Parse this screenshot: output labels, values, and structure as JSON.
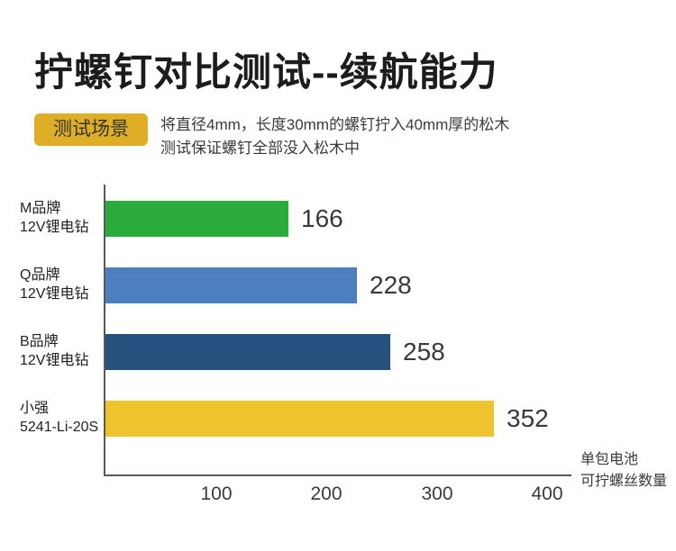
{
  "page": {
    "title": "拧螺钉对比测试--续航能力",
    "scenario_badge": "测试场景",
    "scenario_line1": "将直径4mm，长度30mm的螺钉拧入40mm厚的松木",
    "scenario_line2": "测试保证螺钉全部没入松木中"
  },
  "chart_data": {
    "type": "bar",
    "orientation": "horizontal",
    "title": "拧螺钉对比测试--续航能力",
    "categories": [
      [
        "M品牌",
        "12V锂电钻"
      ],
      [
        "Q品牌",
        "12V锂电钻"
      ],
      [
        "B品牌",
        "12V锂电钻"
      ],
      [
        "小强",
        "5241-Li-20S"
      ]
    ],
    "values": [
      166,
      228,
      258,
      352
    ],
    "bar_colors": [
      "#2aab3c",
      "#4d7fbf",
      "#26517f",
      "#eec32d"
    ],
    "x_ticks": [
      100,
      200,
      300,
      400
    ],
    "xlim": [
      0,
      400
    ],
    "grid": false,
    "axis_label": [
      "单包电池",
      "可拧螺丝数量"
    ]
  },
  "colors": {
    "badge_background": "#dfae27",
    "axis_line": "#59595b",
    "text_dark": "#1c1c1c"
  }
}
